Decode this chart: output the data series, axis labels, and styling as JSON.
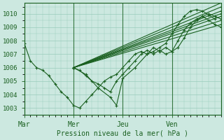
{
  "title": "",
  "xlabel": "Pression niveau de la mer( hPa )",
  "ylabel": "",
  "bg_color": "#cce8e0",
  "plot_bg_color": "#cce8e0",
  "grid_color": "#99ccbb",
  "line_color": "#1a6020",
  "ylim": [
    1002.5,
    1010.8
  ],
  "day_labels": [
    "Mar",
    "Mer",
    "Jeu",
    "Ven"
  ],
  "day_positions": [
    0,
    48,
    96,
    144
  ],
  "total_hours": 192,
  "series": [
    {
      "type": "observed",
      "points": [
        [
          0,
          1007.8
        ],
        [
          6,
          1006.5
        ],
        [
          12,
          1006.0
        ],
        [
          18,
          1005.8
        ],
        [
          24,
          1005.4
        ],
        [
          30,
          1004.8
        ],
        [
          36,
          1004.2
        ],
        [
          42,
          1003.8
        ],
        [
          48,
          1003.2
        ],
        [
          54,
          1003.0
        ],
        [
          60,
          1003.5
        ],
        [
          66,
          1004.0
        ],
        [
          72,
          1004.5
        ],
        [
          78,
          1005.0
        ],
        [
          84,
          1005.3
        ],
        [
          90,
          1005.5
        ],
        [
          96,
          1006.0
        ],
        [
          102,
          1006.5
        ],
        [
          108,
          1007.0
        ],
        [
          114,
          1007.2
        ],
        [
          120,
          1007.0
        ],
        [
          126,
          1007.2
        ],
        [
          132,
          1007.5
        ],
        [
          138,
          1007.8
        ],
        [
          144,
          1008.5
        ],
        [
          150,
          1009.2
        ],
        [
          156,
          1009.8
        ],
        [
          162,
          1010.2
        ],
        [
          168,
          1010.3
        ],
        [
          174,
          1010.2
        ],
        [
          180,
          1009.9
        ],
        [
          186,
          1009.6
        ]
      ]
    },
    {
      "type": "forecast",
      "points": [
        [
          48,
          1006.0
        ],
        [
          192,
          1009.2
        ]
      ]
    },
    {
      "type": "forecast",
      "points": [
        [
          48,
          1006.0
        ],
        [
          192,
          1009.5
        ]
      ]
    },
    {
      "type": "forecast",
      "points": [
        [
          48,
          1006.0
        ],
        [
          192,
          1009.8
        ]
      ]
    },
    {
      "type": "forecast",
      "points": [
        [
          48,
          1006.0
        ],
        [
          192,
          1010.0
        ]
      ]
    },
    {
      "type": "forecast",
      "points": [
        [
          48,
          1006.0
        ],
        [
          192,
          1010.2
        ]
      ]
    },
    {
      "type": "forecast",
      "points": [
        [
          48,
          1006.0
        ],
        [
          192,
          1010.5
        ]
      ]
    },
    {
      "type": "forecast",
      "points": [
        [
          48,
          1006.0
        ],
        [
          192,
          1010.8
        ]
      ]
    },
    {
      "type": "dip1",
      "points": [
        [
          48,
          1006.0
        ],
        [
          60,
          1005.5
        ],
        [
          72,
          1004.5
        ],
        [
          84,
          1003.8
        ],
        [
          90,
          1003.2
        ],
        [
          96,
          1005.2
        ],
        [
          108,
          1006.0
        ],
        [
          120,
          1007.0
        ],
        [
          126,
          1007.5
        ],
        [
          132,
          1007.2
        ],
        [
          138,
          1007.5
        ],
        [
          144,
          1007.2
        ],
        [
          150,
          1007.5
        ],
        [
          156,
          1008.2
        ],
        [
          162,
          1009.0
        ],
        [
          168,
          1009.5
        ],
        [
          174,
          1009.8
        ],
        [
          180,
          1010.0
        ],
        [
          186,
          1009.8
        ],
        [
          192,
          1009.6
        ]
      ]
    },
    {
      "type": "dip2",
      "points": [
        [
          48,
          1006.0
        ],
        [
          54,
          1005.8
        ],
        [
          60,
          1005.4
        ],
        [
          66,
          1005.0
        ],
        [
          72,
          1004.8
        ],
        [
          78,
          1004.5
        ],
        [
          84,
          1004.2
        ],
        [
          90,
          1005.0
        ],
        [
          96,
          1005.5
        ],
        [
          102,
          1006.0
        ],
        [
          108,
          1006.5
        ],
        [
          114,
          1007.0
        ],
        [
          120,
          1007.3
        ],
        [
          126,
          1007.0
        ],
        [
          132,
          1007.3
        ],
        [
          138,
          1007.0
        ],
        [
          144,
          1007.2
        ],
        [
          150,
          1008.0
        ],
        [
          156,
          1008.8
        ],
        [
          162,
          1009.3
        ],
        [
          168,
          1009.6
        ],
        [
          174,
          1009.8
        ],
        [
          180,
          1009.5
        ],
        [
          186,
          1009.2
        ],
        [
          192,
          1009.0
        ]
      ]
    }
  ]
}
